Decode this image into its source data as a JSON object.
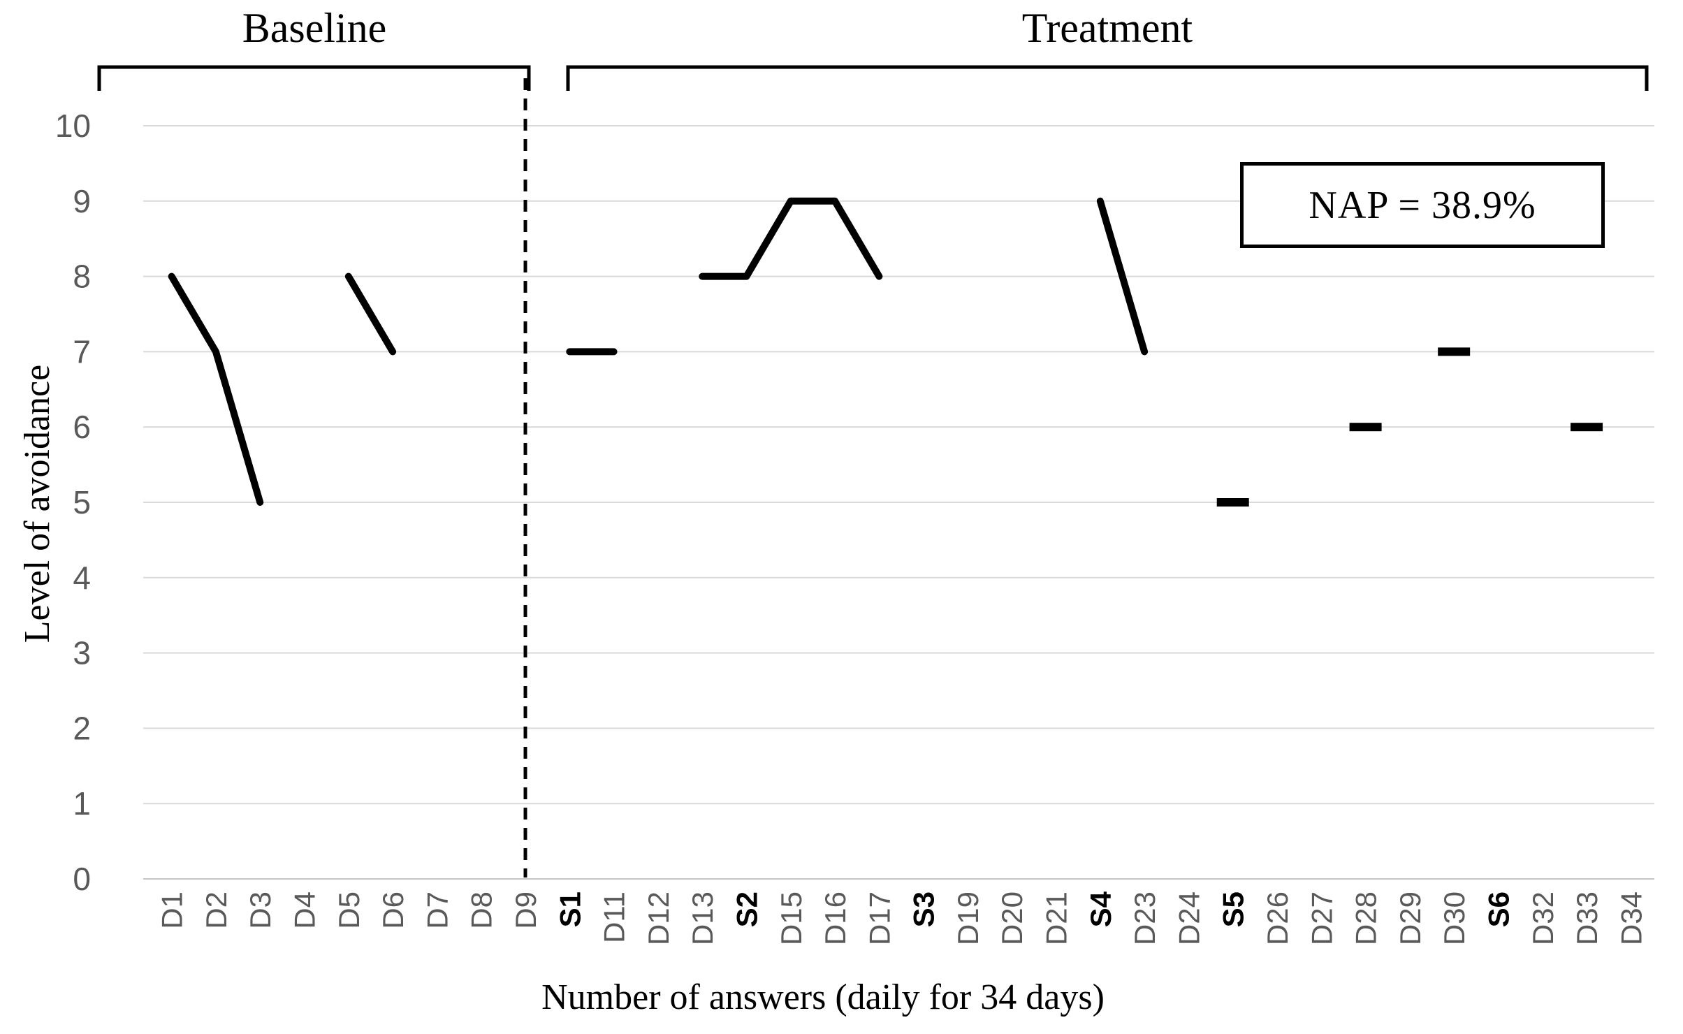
{
  "chart_data": {
    "type": "line",
    "title": "",
    "xlabel": "Number of answers (daily for 34 days)",
    "ylabel": "Level of avoidance",
    "ylim": [
      0,
      10
    ],
    "yticks": [
      0,
      1,
      2,
      3,
      4,
      5,
      6,
      7,
      8,
      9,
      10
    ],
    "grid": true,
    "legend": "none",
    "categories": [
      "D1",
      "D2",
      "D3",
      "D4",
      "D5",
      "D6",
      "D7",
      "D8",
      "D9",
      "S1",
      "D11",
      "D12",
      "D13",
      "S2",
      "D15",
      "D16",
      "D17",
      "S3",
      "D19",
      "D20",
      "D21",
      "S4",
      "D23",
      "D24",
      "S5",
      "D26",
      "D27",
      "D28",
      "D29",
      "D30",
      "S6",
      "D32",
      "D33",
      "D34"
    ],
    "bold_categories": [
      "S1",
      "S2",
      "S3",
      "S4",
      "S5",
      "S6"
    ],
    "values": [
      8,
      7,
      5,
      null,
      8,
      7,
      null,
      null,
      null,
      7,
      7,
      null,
      8,
      8,
      9,
      9,
      8,
      null,
      null,
      null,
      null,
      9,
      7,
      null,
      5,
      null,
      null,
      6,
      null,
      7,
      null,
      null,
      6,
      null
    ],
    "phases": [
      {
        "name": "Baseline",
        "from": "D1",
        "to": "D9"
      },
      {
        "name": "Treatment",
        "from": "S1",
        "to": "D34"
      }
    ],
    "phase_divider_at_category": "D9",
    "divider_style": "dashed-vertical",
    "annotations": [
      {
        "text": "NAP = 38.9%",
        "boxed": true,
        "position": "upper-right"
      }
    ],
    "colors": {
      "data_line": "#000000",
      "gridline": "#d9d9d9",
      "axis_line": "#c6c6c6",
      "tick_label": "#595959",
      "bold_tick_label": "#000000",
      "annotation_border": "#000000",
      "divider": "#000000",
      "bracket": "#000000"
    }
  }
}
